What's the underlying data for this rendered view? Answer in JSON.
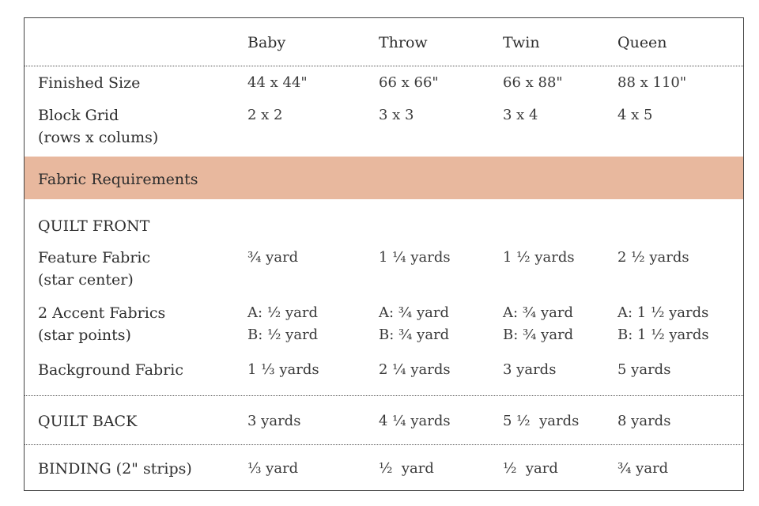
{
  "table": {
    "columns": [
      "Baby",
      "Throw",
      "Twin",
      "Queen"
    ],
    "rows": [
      {
        "label": [
          "Finished Size"
        ],
        "values": [
          [
            "44 x 44\""
          ],
          [
            "66 x 66\""
          ],
          [
            "66 x 88\""
          ],
          [
            "88 x 110\""
          ]
        ]
      },
      {
        "label": [
          "Block Grid",
          "(rows x colums)"
        ],
        "values": [
          [
            "2 x 2"
          ],
          [
            "3 x 3"
          ],
          [
            "3 x 4"
          ],
          [
            "4 x 5"
          ]
        ]
      },
      {
        "section": "Fabric Requirements"
      },
      {
        "label": [
          "QUILT FRONT"
        ]
      },
      {
        "label": [
          "Feature Fabric",
          "(star center)"
        ],
        "values": [
          [
            "¾ yard"
          ],
          [
            "1 ¼ yards"
          ],
          [
            "1 ½ yards"
          ],
          [
            "2 ½ yards"
          ]
        ]
      },
      {
        "label": [
          "2 Accent Fabrics",
          "(star points)"
        ],
        "values": [
          [
            "A: ½ yard",
            "B: ½ yard"
          ],
          [
            "A: ¾ yard",
            "B: ¾ yard"
          ],
          [
            "A: ¾ yard",
            "B: ¾ yard"
          ],
          [
            "A: 1 ½ yards",
            "B: 1 ½ yards"
          ]
        ]
      },
      {
        "label": [
          "Background Fabric"
        ],
        "values": [
          [
            "1 ⅓ yards"
          ],
          [
            "2 ¼ yards"
          ],
          [
            "3 yards"
          ],
          [
            "5 yards"
          ]
        ]
      },
      {
        "label": [
          "QUILT BACK"
        ],
        "values": [
          [
            "3 yards"
          ],
          [
            "4 ¼ yards"
          ],
          [
            "5 ½  yards"
          ],
          [
            "8 yards"
          ]
        ]
      },
      {
        "label": [
          "BINDING (2\" strips)"
        ],
        "values": [
          [
            "⅓ yard"
          ],
          [
            "½  yard"
          ],
          [
            "½  yard"
          ],
          [
            "¾ yard"
          ]
        ]
      }
    ]
  }
}
